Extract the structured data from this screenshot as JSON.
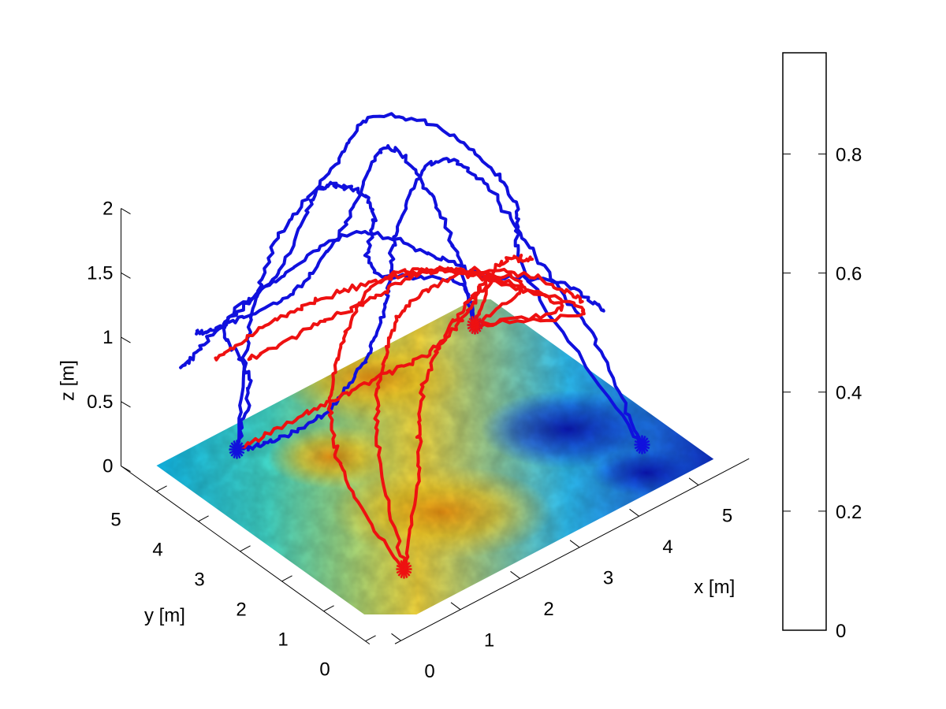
{
  "chart_data": {
    "type": "surface3d",
    "title": "",
    "xlabel": "x [m]",
    "ylabel": "y [m]",
    "zlabel": "z [m]",
    "xlim": [
      0,
      5.5
    ],
    "ylim": [
      0,
      5.5
    ],
    "zlim": [
      0,
      2
    ],
    "x_ticks": [
      "0",
      "1",
      "2",
      "3",
      "4",
      "5"
    ],
    "y_ticks": [
      "0",
      "1",
      "2",
      "3",
      "4",
      "5"
    ],
    "z_ticks": [
      "0",
      "0.5",
      "1",
      "1.5",
      "2"
    ],
    "grid": false,
    "surface": {
      "z": 0,
      "colormap": "jet",
      "description_values": "heatmap field over the floor plane"
    },
    "colorbar": {
      "ticks": [
        "0",
        "0.2",
        "0.4",
        "0.6",
        "0.8"
      ],
      "range": [
        0,
        0.97
      ]
    },
    "series": [
      {
        "color": "#1010dd",
        "markers": [
          [
            5.0,
            5.0,
            0.0
          ],
          [
            1.0,
            5.0,
            0.0
          ],
          [
            5.0,
            1.0,
            0.0
          ]
        ],
        "paths": [
          [
            [
              1.0,
              5.0,
              0.0
            ],
            [
              1.2,
              5.0,
              0.5
            ],
            [
              1.0,
              5.3,
              0.9
            ],
            [
              1.8,
              5.2,
              1.1
            ],
            [
              2.6,
              5.4,
              1.5
            ],
            [
              3.0,
              5.2,
              1.5
            ],
            [
              3.3,
              5.0,
              1.3
            ],
            [
              3.0,
              4.6,
              1.0
            ],
            [
              4.0,
              4.0,
              0.8
            ],
            [
              5.0,
              5.0,
              0.0
            ]
          ],
          [
            [
              1.0,
              5.0,
              0.0
            ],
            [
              1.4,
              5.3,
              0.7
            ],
            [
              2.0,
              5.5,
              1.25
            ],
            [
              2.8,
              5.4,
              1.6
            ],
            [
              3.5,
              5.3,
              1.9
            ],
            [
              4.3,
              4.5,
              1.75
            ],
            [
              4.8,
              3.8,
              1.3
            ],
            [
              4.6,
              3.2,
              0.9
            ],
            [
              5.0,
              1.0,
              0.0
            ]
          ],
          [
            [
              5.0,
              5.0,
              0.0
            ],
            [
              4.8,
              5.2,
              0.6
            ],
            [
              4.2,
              5.2,
              1.3
            ],
            [
              3.5,
              5.1,
              1.7
            ],
            [
              2.8,
              5.0,
              1.3
            ],
            [
              2.0,
              5.0,
              1.0
            ],
            [
              1.2,
              5.4,
              0.85
            ],
            [
              0.6,
              5.4,
              0.9
            ]
          ],
          [
            [
              5.0,
              1.0,
              0.0
            ],
            [
              4.9,
              2.0,
              0.6
            ],
            [
              4.6,
              3.0,
              1.1
            ],
            [
              4.4,
              4.0,
              1.5
            ],
            [
              4.0,
              4.6,
              1.6
            ],
            [
              3.4,
              4.6,
              1.2
            ],
            [
              3.0,
              4.3,
              0.8
            ],
            [
              2.4,
              4.0,
              0.55
            ],
            [
              1.6,
              3.8,
              0.4
            ],
            [
              1.0,
              4.2,
              0.25
            ],
            [
              1.0,
              5.0,
              0.0
            ]
          ],
          [
            [
              0.5,
              5.6,
              0.6
            ],
            [
              1.0,
              5.5,
              0.8
            ],
            [
              2.0,
              5.4,
              1.0
            ],
            [
              3.0,
              5.0,
              1.2
            ],
            [
              3.8,
              4.2,
              1.0
            ],
            [
              4.2,
              3.6,
              0.9
            ],
            [
              5.0,
              3.0,
              0.8
            ],
            [
              5.4,
              2.5,
              0.6
            ]
          ]
        ]
      },
      {
        "color": "#ee1111",
        "markers": [
          [
            1.0,
            1.0,
            0.0
          ],
          [
            5.0,
            5.0,
            0.0
          ]
        ],
        "paths": [
          [
            [
              1.0,
              1.0,
              0.0
            ],
            [
              1.1,
              2.5,
              0.3
            ],
            [
              1.6,
              3.6,
              0.5
            ],
            [
              2.4,
              4.4,
              0.7
            ],
            [
              3.2,
              4.6,
              0.9
            ],
            [
              4.0,
              4.2,
              0.85
            ],
            [
              4.8,
              3.6,
              0.7
            ],
            [
              5.0,
              5.0,
              0.0
            ]
          ],
          [
            [
              1.0,
              1.0,
              0.0
            ],
            [
              1.4,
              2.2,
              0.6
            ],
            [
              2.2,
              3.2,
              0.8
            ],
            [
              3.0,
              3.8,
              0.9
            ],
            [
              3.8,
              3.6,
              1.0
            ],
            [
              4.4,
              3.0,
              0.9
            ],
            [
              5.0,
              2.4,
              0.7
            ],
            [
              5.0,
              5.0,
              0.0
            ]
          ],
          [
            [
              1.2,
              5.0,
              0.65
            ],
            [
              2.0,
              4.6,
              0.8
            ],
            [
              2.8,
              4.2,
              0.95
            ],
            [
              3.6,
              4.0,
              1.0
            ],
            [
              4.4,
              3.6,
              0.8
            ],
            [
              5.2,
              3.2,
              0.5
            ],
            [
              5.0,
              5.0,
              0.0
            ]
          ],
          [
            [
              1.0,
              1.0,
              0.0
            ],
            [
              1.8,
              1.8,
              0.4
            ],
            [
              2.4,
              2.6,
              0.6
            ],
            [
              3.2,
              3.2,
              0.75
            ],
            [
              4.0,
              3.6,
              0.8
            ],
            [
              4.6,
              4.0,
              0.7
            ],
            [
              5.0,
              5.0,
              0.0
            ]
          ],
          [
            [
              1.0,
              5.0,
              0.0
            ],
            [
              1.4,
              4.0,
              0.4
            ],
            [
              2.2,
              3.6,
              0.55
            ],
            [
              3.0,
              3.2,
              0.7
            ],
            [
              3.8,
              3.4,
              0.8
            ],
            [
              4.6,
              3.8,
              0.85
            ],
            [
              5.4,
              4.2,
              0.6
            ]
          ],
          [
            [
              0.8,
              5.2,
              0.7
            ],
            [
              1.6,
              5.0,
              0.85
            ],
            [
              2.4,
              4.8,
              0.9
            ],
            [
              3.2,
              4.4,
              0.95
            ],
            [
              4.0,
              4.0,
              0.9
            ],
            [
              4.8,
              3.4,
              0.8
            ],
            [
              5.4,
              3.0,
              0.55
            ]
          ]
        ]
      }
    ]
  }
}
